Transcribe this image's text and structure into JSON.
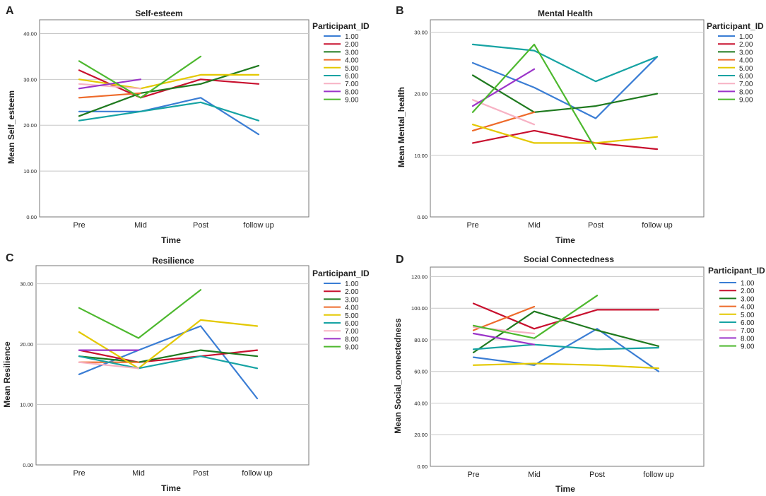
{
  "series_ids": [
    "1.00",
    "2.00",
    "3.00",
    "4.00",
    "5.00",
    "6.00",
    "7.00",
    "8.00",
    "9.00"
  ],
  "series_colors": [
    "#3A7DD4",
    "#C8102E",
    "#1F7A1F",
    "#EE6A2A",
    "#E3C800",
    "#16A3A3",
    "#F7B2C4",
    "#9B34C9",
    "#4DB82E"
  ],
  "chart_data": [
    {
      "panel": "A",
      "type": "line",
      "title": "Self-esteem",
      "xlabel": "Time",
      "ylabel": "Mean Self_esteem",
      "categories": [
        "Pre",
        "Mid",
        "Post",
        "follow up"
      ],
      "ylim": [
        0,
        43
      ],
      "yticks": [
        0,
        10,
        20,
        30,
        40
      ],
      "ytick_labels": [
        "0.00",
        "10.00",
        "20.00",
        "30.00",
        "40.00"
      ],
      "legend_title": "Participant_ID",
      "series": [
        {
          "name": "1.00",
          "values": [
            23,
            23,
            26,
            18
          ]
        },
        {
          "name": "2.00",
          "values": [
            32,
            26,
            30,
            29
          ]
        },
        {
          "name": "3.00",
          "values": [
            22,
            27,
            29,
            33
          ]
        },
        {
          "name": "4.00",
          "values": [
            26,
            27,
            null,
            null
          ]
        },
        {
          "name": "5.00",
          "values": [
            30,
            28,
            31,
            31
          ]
        },
        {
          "name": "6.00",
          "values": [
            21,
            23,
            25,
            21
          ]
        },
        {
          "name": "7.00",
          "values": [
            29,
            28,
            null,
            null
          ]
        },
        {
          "name": "8.00",
          "values": [
            28,
            30,
            null,
            null
          ]
        },
        {
          "name": "9.00",
          "values": [
            34,
            26,
            35,
            null
          ]
        }
      ]
    },
    {
      "panel": "B",
      "type": "line",
      "title": "Mental Health",
      "xlabel": "Time",
      "ylabel": "Mean Mental_health",
      "categories": [
        "Pre",
        "Mid",
        "Post",
        "follow up"
      ],
      "ylim": [
        0,
        32
      ],
      "yticks": [
        0,
        10,
        20,
        30
      ],
      "ytick_labels": [
        "0.00",
        "10.00",
        "20.00",
        "30.00"
      ],
      "legend_title": "Participant_ID",
      "series": [
        {
          "name": "1.00",
          "values": [
            25,
            21,
            16,
            26
          ]
        },
        {
          "name": "2.00",
          "values": [
            12,
            14,
            12,
            11
          ]
        },
        {
          "name": "3.00",
          "values": [
            23,
            17,
            18,
            20
          ]
        },
        {
          "name": "4.00",
          "values": [
            14,
            17,
            null,
            null
          ]
        },
        {
          "name": "5.00",
          "values": [
            15,
            12,
            12,
            13
          ]
        },
        {
          "name": "6.00",
          "values": [
            28,
            27,
            22,
            26
          ]
        },
        {
          "name": "7.00",
          "values": [
            19,
            15,
            null,
            null
          ]
        },
        {
          "name": "8.00",
          "values": [
            18,
            24,
            null,
            null
          ]
        },
        {
          "name": "9.00",
          "values": [
            17,
            28,
            11,
            null
          ]
        }
      ]
    },
    {
      "panel": "C",
      "type": "line",
      "title": "Resilience",
      "xlabel": "Time",
      "ylabel": "Mean Resilience",
      "categories": [
        "Pre",
        "Mid",
        "Post",
        "follow up"
      ],
      "ylim": [
        0,
        33
      ],
      "yticks": [
        0,
        10,
        20,
        30
      ],
      "ytick_labels": [
        "0.00",
        "10.00",
        "20.00",
        "30.00"
      ],
      "legend_title": "Participant_ID",
      "series": [
        {
          "name": "1.00",
          "values": [
            15,
            19,
            23,
            11
          ]
        },
        {
          "name": "2.00",
          "values": [
            19,
            17,
            18,
            19
          ]
        },
        {
          "name": "3.00",
          "values": [
            18,
            17,
            19,
            18
          ]
        },
        {
          "name": "4.00",
          "values": [
            17,
            17,
            null,
            null
          ]
        },
        {
          "name": "5.00",
          "values": [
            22,
            16,
            24,
            23
          ]
        },
        {
          "name": "6.00",
          "values": [
            18,
            16,
            18,
            16
          ]
        },
        {
          "name": "7.00",
          "values": [
            17,
            16,
            null,
            null
          ]
        },
        {
          "name": "8.00",
          "values": [
            19,
            19,
            null,
            null
          ]
        },
        {
          "name": "9.00",
          "values": [
            26,
            21,
            29,
            null
          ]
        }
      ]
    },
    {
      "panel": "D",
      "type": "line",
      "title": "Social Connectedness",
      "xlabel": "Time",
      "ylabel": "Mean Social_connectedness",
      "categories": [
        "Pre",
        "Mid",
        "Post",
        "follow up"
      ],
      "ylim": [
        0,
        126
      ],
      "yticks": [
        0,
        20,
        40,
        60,
        80,
        100,
        120
      ],
      "ytick_labels": [
        "0.00",
        "20.00",
        "40.00",
        "60.00",
        "80.00",
        "100.00",
        "120.00"
      ],
      "legend_title": "Participant_ID",
      "series": [
        {
          "name": "1.00",
          "values": [
            69,
            64,
            87,
            60
          ]
        },
        {
          "name": "2.00",
          "values": [
            103,
            87,
            99,
            99
          ]
        },
        {
          "name": "3.00",
          "values": [
            72,
            98,
            86,
            76
          ]
        },
        {
          "name": "4.00",
          "values": [
            86,
            101,
            null,
            null
          ]
        },
        {
          "name": "5.00",
          "values": [
            64,
            65,
            64,
            62
          ]
        },
        {
          "name": "6.00",
          "values": [
            74,
            77,
            74,
            75
          ]
        },
        {
          "name": "7.00",
          "values": [
            88,
            84,
            null,
            null
          ]
        },
        {
          "name": "8.00",
          "values": [
            84,
            77,
            null,
            null
          ]
        },
        {
          "name": "9.00",
          "values": [
            89,
            81,
            108,
            null
          ]
        }
      ]
    }
  ]
}
